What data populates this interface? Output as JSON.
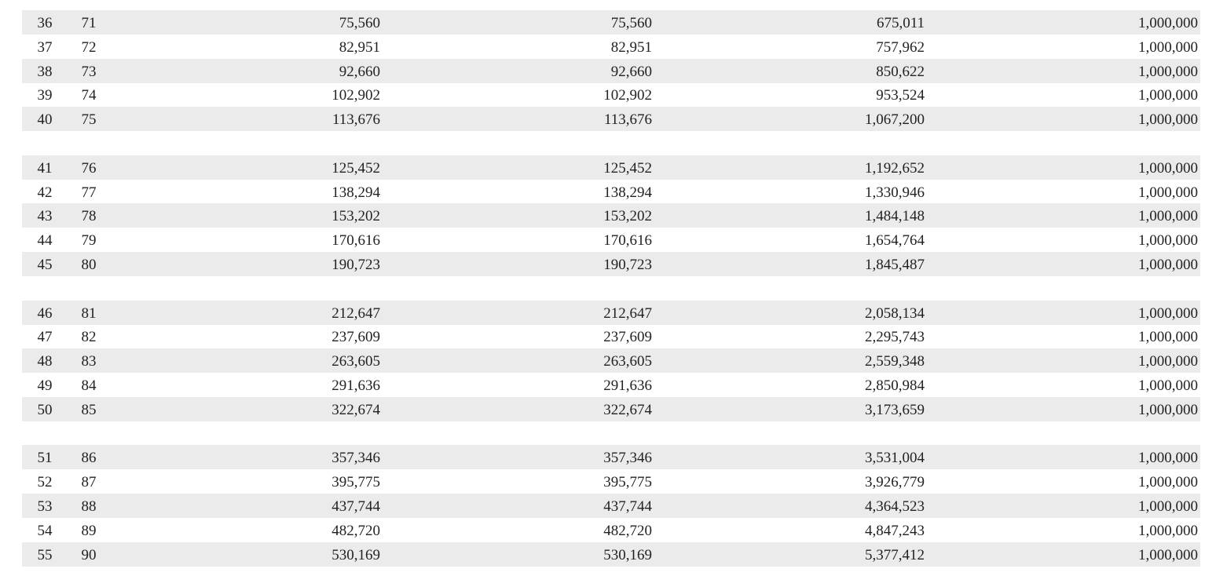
{
  "table": {
    "groups": [
      [
        [
          "36",
          "71",
          "75,560",
          "75,560",
          "675,011",
          "1,000,000"
        ],
        [
          "37",
          "72",
          "82,951",
          "82,951",
          "757,962",
          "1,000,000"
        ],
        [
          "38",
          "73",
          "92,660",
          "92,660",
          "850,622",
          "1,000,000"
        ],
        [
          "39",
          "74",
          "102,902",
          "102,902",
          "953,524",
          "1,000,000"
        ],
        [
          "40",
          "75",
          "113,676",
          "113,676",
          "1,067,200",
          "1,000,000"
        ]
      ],
      [
        [
          "41",
          "76",
          "125,452",
          "125,452",
          "1,192,652",
          "1,000,000"
        ],
        [
          "42",
          "77",
          "138,294",
          "138,294",
          "1,330,946",
          "1,000,000"
        ],
        [
          "43",
          "78",
          "153,202",
          "153,202",
          "1,484,148",
          "1,000,000"
        ],
        [
          "44",
          "79",
          "170,616",
          "170,616",
          "1,654,764",
          "1,000,000"
        ],
        [
          "45",
          "80",
          "190,723",
          "190,723",
          "1,845,487",
          "1,000,000"
        ]
      ],
      [
        [
          "46",
          "81",
          "212,647",
          "212,647",
          "2,058,134",
          "1,000,000"
        ],
        [
          "47",
          "82",
          "237,609",
          "237,609",
          "2,295,743",
          "1,000,000"
        ],
        [
          "48",
          "83",
          "263,605",
          "263,605",
          "2,559,348",
          "1,000,000"
        ],
        [
          "49",
          "84",
          "291,636",
          "291,636",
          "2,850,984",
          "1,000,000"
        ],
        [
          "50",
          "85",
          "322,674",
          "322,674",
          "3,173,659",
          "1,000,000"
        ]
      ],
      [
        [
          "51",
          "86",
          "357,346",
          "357,346",
          "3,531,004",
          "1,000,000"
        ],
        [
          "52",
          "87",
          "395,775",
          "395,775",
          "3,926,779",
          "1,000,000"
        ],
        [
          "53",
          "88",
          "437,744",
          "437,744",
          "4,364,523",
          "1,000,000"
        ],
        [
          "54",
          "89",
          "482,720",
          "482,720",
          "4,847,243",
          "1,000,000"
        ],
        [
          "55",
          "90",
          "530,169",
          "530,169",
          "5,377,412",
          "1,000,000"
        ]
      ]
    ]
  }
}
